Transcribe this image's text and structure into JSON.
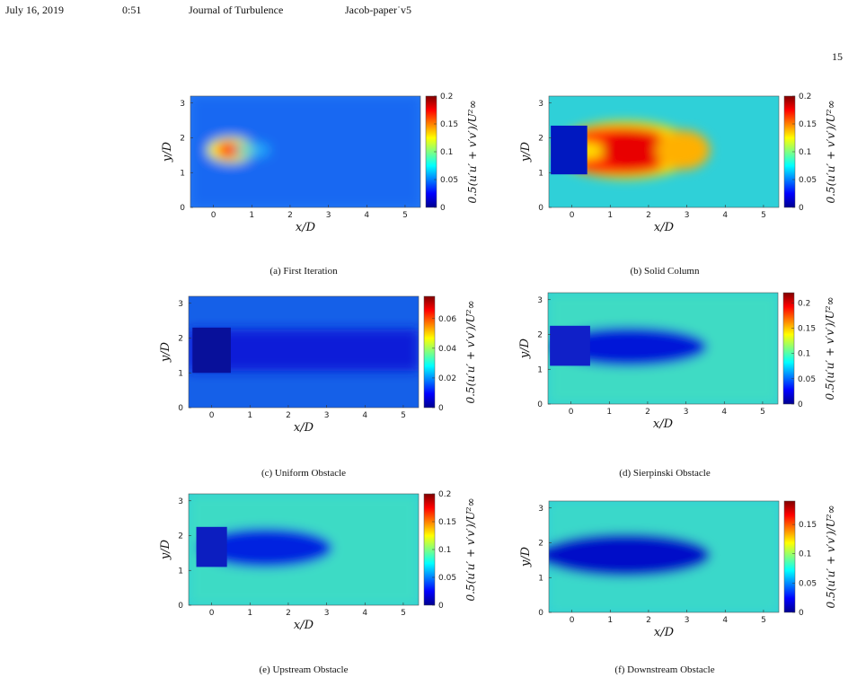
{
  "header": {
    "date": "July 16, 2019",
    "time": "0:51",
    "journal": "Journal of Turbulence",
    "doc": "Jacob-paper˙v5",
    "page_number": "15"
  },
  "colors": {
    "colormap": [
      "#00008f",
      "#0000ff",
      "#0080ff",
      "#00ffff",
      "#80ff80",
      "#ffff00",
      "#ff8000",
      "#ff0000",
      "#800000"
    ]
  },
  "chart_data": [
    {
      "id": "a",
      "type": "heatmap",
      "caption": "(a)  First Iteration",
      "xlabel": "x/D",
      "ylabel": "y/D",
      "colorbar_label": "0.5(u′u′ + v′v′)/U²∞",
      "xticks": [
        "0",
        "1",
        "2",
        "3",
        "4",
        "5"
      ],
      "yticks": [
        "0",
        "1",
        "2",
        "3"
      ],
      "xlim": [
        -0.6,
        5.4
      ],
      "ylim": [
        0,
        3.2
      ],
      "cbar_ticks": [
        "0",
        "0.05",
        "0.1",
        "0.15",
        "0.2"
      ],
      "cbar_range": [
        0,
        0.2
      ],
      "obstacle": "fractal-first-iteration"
    },
    {
      "id": "b",
      "type": "heatmap",
      "caption": "(b)  Solid Column",
      "xlabel": "x/D",
      "ylabel": "y/D",
      "colorbar_label": "0.5(u′u′ + v′v′)/U²∞",
      "xticks": [
        "0",
        "1",
        "2",
        "3",
        "4",
        "5"
      ],
      "yticks": [
        "0",
        "1",
        "2",
        "3"
      ],
      "xlim": [
        -0.6,
        5.4
      ],
      "ylim": [
        0,
        3.2
      ],
      "cbar_ticks": [
        "0",
        "0.05",
        "0.1",
        "0.15",
        "0.2"
      ],
      "cbar_range": [
        0,
        0.2
      ],
      "obstacle": "solid"
    },
    {
      "id": "c",
      "type": "heatmap",
      "caption": "(c)  Uniform Obstacle",
      "xlabel": "x/D",
      "ylabel": "y/D",
      "colorbar_label": "0.5(u′u′ + v′v′)/U²∞",
      "xticks": [
        "0",
        "1",
        "2",
        "3",
        "4",
        "5"
      ],
      "yticks": [
        "0",
        "1",
        "2",
        "3"
      ],
      "xlim": [
        -0.6,
        5.4
      ],
      "ylim": [
        0,
        3.2
      ],
      "cbar_ticks": [
        "0",
        "0.02",
        "0.04",
        "0.06"
      ],
      "cbar_range": [
        0,
        0.075
      ],
      "obstacle": "uniform"
    },
    {
      "id": "d",
      "type": "heatmap",
      "caption": "(d)  Sierpinski Obstacle",
      "xlabel": "x/D",
      "ylabel": "y/D",
      "colorbar_label": "0.5(u′u′ + v′v′)/U²∞",
      "xticks": [
        "0",
        "1",
        "2",
        "3",
        "4",
        "5"
      ],
      "yticks": [
        "0",
        "1",
        "2",
        "3"
      ],
      "xlim": [
        -0.6,
        5.4
      ],
      "ylim": [
        0,
        3.2
      ],
      "cbar_ticks": [
        "0",
        "0.05",
        "0.1",
        "0.15",
        "0.2"
      ],
      "cbar_range": [
        0,
        0.22
      ],
      "obstacle": "sierpinski"
    },
    {
      "id": "e",
      "type": "heatmap",
      "caption": "(e)  Upstream Obstacle",
      "xlabel": "x/D",
      "ylabel": "y/D",
      "colorbar_label": "0.5(u′u′ + v′v′)/U²∞",
      "xticks": [
        "0",
        "1",
        "2",
        "3",
        "4",
        "5"
      ],
      "yticks": [
        "0",
        "1",
        "2",
        "3"
      ],
      "xlim": [
        -0.6,
        5.4
      ],
      "ylim": [
        0,
        3.2
      ],
      "cbar_ticks": [
        "0",
        "0.05",
        "0.1",
        "0.15",
        "0.2"
      ],
      "cbar_range": [
        0,
        0.2
      ],
      "obstacle": "upstream"
    },
    {
      "id": "f",
      "type": "heatmap",
      "caption": "(f)  Downstream Obstacle",
      "xlabel": "x/D",
      "ylabel": "y/D",
      "colorbar_label": "0.5(u′u′ + v′v′)/U²∞",
      "xticks": [
        "0",
        "1",
        "2",
        "3",
        "4",
        "5"
      ],
      "yticks": [
        "0",
        "1",
        "2",
        "3"
      ],
      "xlim": [
        -0.6,
        5.4
      ],
      "ylim": [
        0,
        3.2
      ],
      "cbar_ticks": [
        "0",
        "0.05",
        "0.1",
        "0.15"
      ],
      "cbar_range": [
        0,
        0.19
      ],
      "obstacle": "downstream"
    }
  ]
}
